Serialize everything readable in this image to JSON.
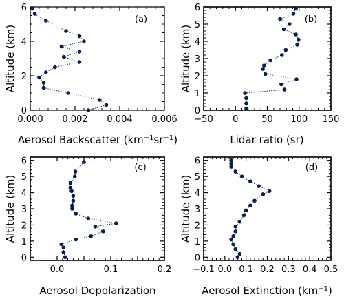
{
  "chart_data": [
    {
      "type": "line",
      "panel_tag": "(a)",
      "xlabel": "Aerosol Backscatter (km⁻¹sr⁻¹)",
      "ylabel": "Altitude (km)",
      "xlim": [
        0.0,
        0.006
      ],
      "ylim": [
        0,
        6
      ],
      "xticks": [
        0.0,
        0.002,
        0.004,
        0.006
      ],
      "xtick_labels": [
        "0.000",
        "0.002",
        "0.004",
        "0.006"
      ],
      "yticks": [
        0,
        2,
        4,
        6
      ],
      "ytick_labels": [
        "0",
        "2",
        "4",
        "6"
      ],
      "grid": false,
      "series": [
        {
          "x": [
            0.0026,
            0.0034,
            0.0031,
            0.0017,
            0.0006,
            0.0006,
            0.0004,
            0.0007,
            0.0011,
            0.0022,
            0.0015,
            0.0022,
            0.0014,
            0.0024,
            0.0022,
            0.0016,
            0.0007,
            0.0002,
            0.0001
          ],
          "y": [
            0.0,
            0.3,
            0.6,
            1.0,
            1.3,
            1.6,
            1.9,
            2.2,
            2.5,
            2.8,
            3.1,
            3.4,
            3.7,
            4.0,
            4.3,
            4.6,
            5.2,
            5.6,
            5.9
          ]
        }
      ]
    },
    {
      "type": "line",
      "panel_tag": "(b)",
      "xlabel": "Lidar ratio (sr)",
      "ylabel": "Altitude (km)",
      "xlim": [
        -50,
        150
      ],
      "ylim": [
        0,
        6
      ],
      "xticks": [
        -50,
        0,
        50,
        100,
        150
      ],
      "xtick_labels": [
        "−50",
        "0",
        "50",
        "100",
        "150"
      ],
      "yticks": [
        0,
        1,
        2,
        3,
        4,
        5,
        6
      ],
      "ytick_labels": [
        "0",
        "1",
        "2",
        "3",
        "4",
        "5",
        "6"
      ],
      "grid": false,
      "series": [
        {
          "x": [
            17,
            17,
            17,
            15,
            77,
            72,
            96,
            47,
            43,
            45,
            55,
            73,
            79,
            97,
            99,
            95,
            76,
            85,
            70,
            91,
            95
          ],
          "y": [
            0.1,
            0.4,
            0.7,
            1.0,
            1.2,
            1.5,
            1.8,
            2.1,
            2.4,
            2.6,
            2.9,
            3.2,
            3.5,
            3.8,
            4.1,
            4.4,
            4.7,
            5.0,
            5.3,
            5.6,
            5.9
          ]
        }
      ]
    },
    {
      "type": "line",
      "panel_tag": "(c)",
      "xlabel": "Aerosol Depolarization",
      "ylabel": "Altitude (km)",
      "xlim": [
        -0.05,
        0.2
      ],
      "ylim": [
        -0.2,
        6.2
      ],
      "xticks": [
        0.0,
        0.05,
        0.1,
        0.15,
        0.2
      ],
      "xtick_labels": [
        "0.0",
        "",
        "0.1",
        "",
        "0.2"
      ],
      "yticks": [
        0,
        1,
        2,
        3,
        4,
        5,
        6
      ],
      "ytick_labels": [
        "0",
        "1",
        "2",
        "3",
        "4",
        "5",
        "6"
      ],
      "grid": false,
      "series": [
        {
          "x": [
            0.015,
            0.012,
            0.012,
            0.008,
            0.035,
            0.063,
            0.086,
            0.071,
            0.11,
            0.058,
            0.035,
            0.028,
            0.028,
            0.03,
            0.03,
            0.027,
            0.025,
            0.025,
            0.033,
            0.034,
            0.05
          ],
          "y": [
            0.0,
            0.3,
            0.6,
            0.8,
            1.1,
            1.3,
            1.6,
            1.9,
            2.1,
            2.4,
            2.7,
            3.0,
            3.2,
            3.5,
            3.8,
            4.1,
            4.3,
            4.6,
            5.0,
            5.3,
            5.9
          ]
        }
      ]
    },
    {
      "type": "line",
      "panel_tag": "(d)",
      "xlabel": "Aerosol Extinction (km⁻¹)",
      "ylabel": "Altitude (km)",
      "xlim": [
        -0.1,
        0.5
      ],
      "ylim": [
        -0.2,
        6.2
      ],
      "xticks": [
        -0.1,
        0.0,
        0.1,
        0.2,
        0.3,
        0.4,
        0.5
      ],
      "xtick_labels": [
        "−0.1",
        "0.0",
        "0.1",
        "0.2",
        "0.3",
        "0.4",
        "0.5"
      ],
      "yticks": [
        0,
        1,
        2,
        3,
        4,
        5,
        6
      ],
      "ytick_labels": [
        "0",
        "1",
        "2",
        "3",
        "4",
        "5",
        "6"
      ],
      "grid": false,
      "series": [
        {
          "x": [
            0.06,
            0.07,
            0.05,
            0.04,
            0.03,
            0.04,
            0.05,
            0.05,
            0.07,
            0.09,
            0.1,
            0.12,
            0.14,
            0.18,
            0.21,
            0.16,
            0.12,
            0.08,
            0.05,
            0.03,
            0.03,
            0.03
          ],
          "y": [
            0.0,
            0.2,
            0.5,
            0.8,
            1.1,
            1.3,
            1.6,
            1.9,
            2.2,
            2.6,
            2.9,
            3.2,
            3.5,
            3.9,
            4.1,
            4.4,
            4.7,
            5.0,
            5.3,
            5.6,
            5.8,
            6.0
          ]
        }
      ]
    }
  ]
}
